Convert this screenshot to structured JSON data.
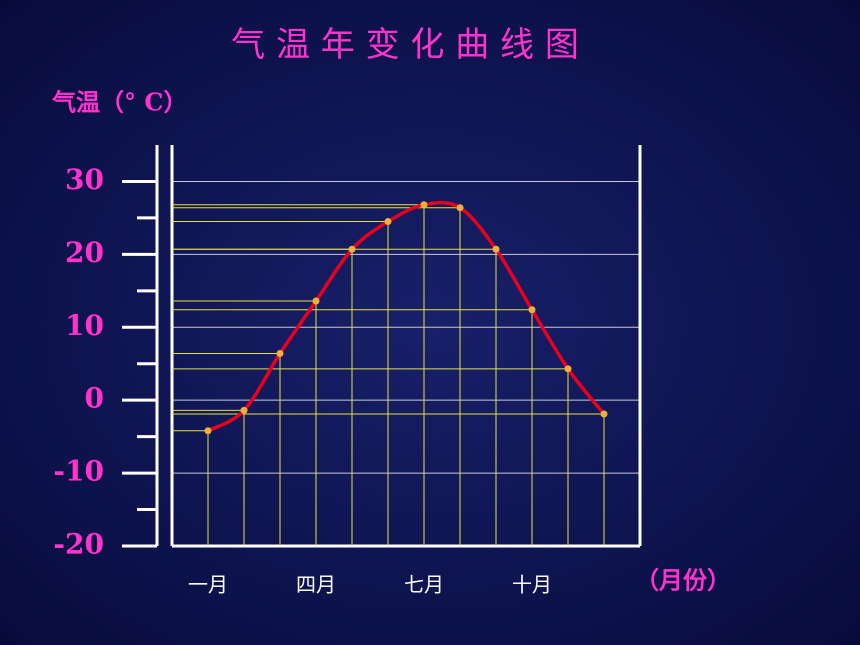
{
  "chart_data": {
    "type": "line",
    "title": "气 温 年 变 化 曲 线 图",
    "y_label": "气温（° C）",
    "x_label": "（月份）",
    "categories": [
      "一月",
      null,
      null,
      "四月",
      null,
      null,
      "七月",
      null,
      null,
      "十月",
      null,
      null
    ],
    "values": [
      -4.2,
      -1.4,
      6.4,
      13.6,
      20.7,
      24.5,
      26.8,
      26.4,
      20.7,
      12.4,
      4.3,
      -1.9
    ],
    "color": "#e8001c",
    "ylim": [
      -20,
      35
    ],
    "yticks": [
      30,
      20,
      10,
      0,
      -10,
      -20
    ],
    "yminorticks": [
      25,
      15,
      5,
      -5,
      -15
    ],
    "grid": true
  }
}
